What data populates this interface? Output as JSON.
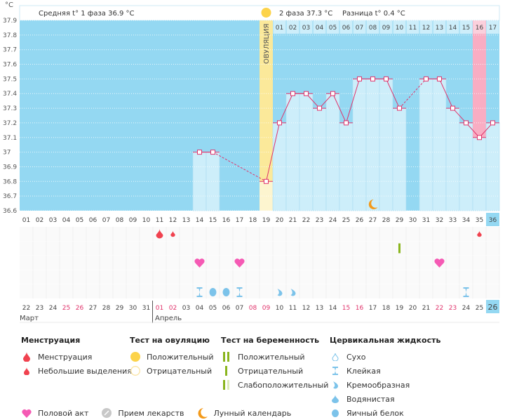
{
  "unit": "°C",
  "header": {
    "phase1_label": "Средняя t° 1 фаза 36.9 °C",
    "phase2_label": "2 фаза 37.3 °C",
    "diff_label": "Разница t° 0.4 °C",
    "ovulation_label": "ОВУЛЯЦИЯ"
  },
  "colors": {
    "plot_bg": "#94d8f2",
    "bar": "#cdeefa",
    "ovulation": "#fbe99a",
    "ovulation_light": "#fdf5cf",
    "period": "#f9adc3",
    "line": "#e0336b",
    "today": "#94d8f2"
  },
  "chart_data": {
    "type": "line",
    "title": "",
    "ylabel": "°C",
    "ylim": [
      36.6,
      37.9
    ],
    "yticks": [
      "37.9",
      "37.8",
      "37.7",
      "37.6",
      "37.5",
      "37.4",
      "37.3",
      "37.2",
      "37.1",
      "37",
      "36.9",
      "36.8",
      "36.7",
      "36.6"
    ],
    "cycle_days": [
      "01",
      "02",
      "03",
      "04",
      "05",
      "06",
      "07",
      "08",
      "09",
      "10",
      "11",
      "12",
      "13",
      "14",
      "15",
      "16",
      "17",
      "18",
      "19",
      "20",
      "21",
      "22",
      "23",
      "24",
      "25",
      "26",
      "27",
      "28",
      "29",
      "30",
      "31",
      "32",
      "33",
      "34",
      "35",
      "36"
    ],
    "temperatures": [
      null,
      null,
      null,
      null,
      null,
      null,
      null,
      null,
      null,
      null,
      null,
      null,
      null,
      37.0,
      37.0,
      null,
      null,
      null,
      36.8,
      37.2,
      37.4,
      37.4,
      37.3,
      37.4,
      37.2,
      37.5,
      37.5,
      37.5,
      37.3,
      null,
      37.5,
      37.5,
      37.3,
      37.2,
      37.1,
      37.2
    ],
    "ovulation_day": 19,
    "phase2_days": [
      "01",
      "02",
      "03",
      "04",
      "05",
      "06",
      "07",
      "08",
      "09",
      "10",
      "11",
      "12",
      "13",
      "14",
      "15",
      "16",
      "17"
    ],
    "period_day": 35,
    "moon_day": 27,
    "current_day": 36,
    "dates": [
      "22",
      "23",
      "24",
      "25",
      "26",
      "27",
      "28",
      "29",
      "30",
      "31",
      "01",
      "02",
      "03",
      "04",
      "05",
      "06",
      "07",
      "08",
      "09",
      "10",
      "11",
      "12",
      "13",
      "14",
      "15",
      "16",
      "17",
      "18",
      "19",
      "20",
      "21",
      "22",
      "23",
      "24",
      "25",
      "26"
    ],
    "weekend_dates": [
      4,
      5,
      11,
      12,
      18,
      19,
      25,
      26,
      32,
      33
    ],
    "months": [
      "Март",
      "Апрель"
    ],
    "markers": {
      "menstruation": [
        {
          "day": 11,
          "type": "big"
        },
        {
          "day": 12,
          "type": "small"
        },
        {
          "day": 35,
          "type": "small"
        }
      ],
      "pregnancy_test": [
        {
          "day": 29,
          "type": "negative"
        }
      ],
      "sex": [
        14,
        17,
        32
      ],
      "cervical": [
        {
          "day": 14,
          "type": "sticky"
        },
        {
          "day": 15,
          "type": "egg"
        },
        {
          "day": 16,
          "type": "egg"
        },
        {
          "day": 17,
          "type": "sticky"
        },
        {
          "day": 20,
          "type": "creamy"
        },
        {
          "day": 21,
          "type": "creamy"
        },
        {
          "day": 34,
          "type": "sticky"
        }
      ]
    }
  },
  "legend": {
    "menstruation": {
      "title": "Менструация",
      "items": [
        "Менструация",
        "Небольшие выделения"
      ]
    },
    "ovulation_test": {
      "title": "Тест на овуляцию",
      "items": [
        "Положительный",
        "Отрицательный"
      ]
    },
    "pregnancy_test": {
      "title": "Тест на беременность",
      "items": [
        "Положительный",
        "Отрицательный",
        "Слабоположительный"
      ]
    },
    "cervical": {
      "title": "Цервикальная жидкость",
      "items": [
        "Сухо",
        "Клейкая",
        "Кремообразная",
        "Водянистая",
        "Яичный белок"
      ]
    },
    "other": [
      "Половой акт",
      "Прием лекарств",
      "Лунный календарь"
    ]
  }
}
